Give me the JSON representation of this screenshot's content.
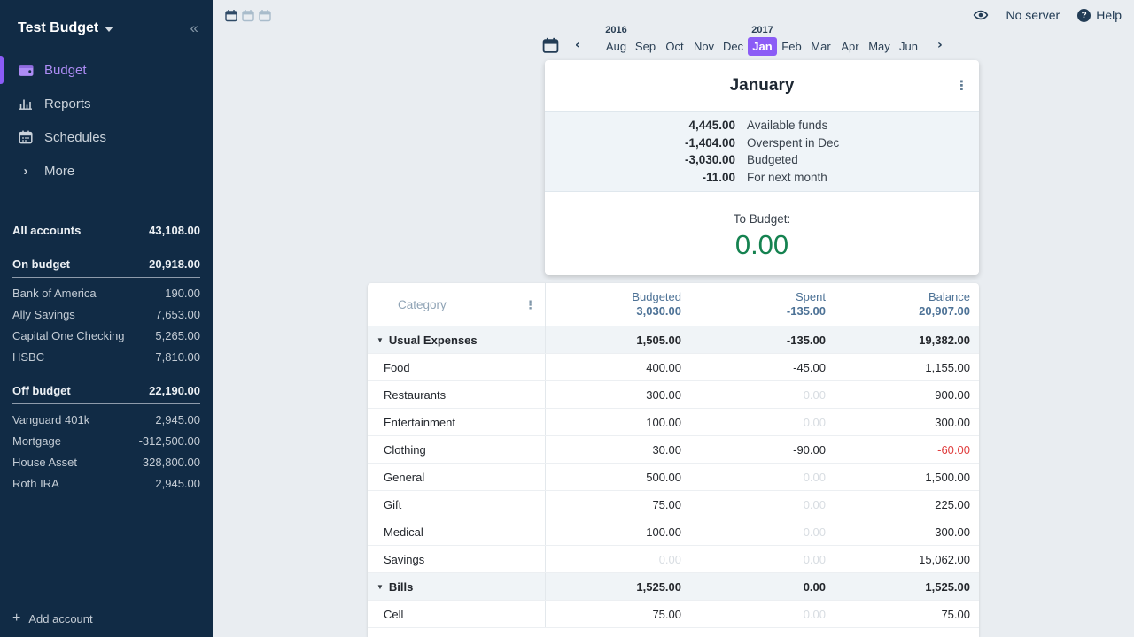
{
  "colors": {
    "sidebar_bg": "#112B45",
    "accent_purple": "#8B5CF6",
    "active_nav_purple": "#AD8CF5",
    "to_budget_green": "#158250",
    "negative_red": "#E03E3E",
    "header_steel_blue": "#4D7296",
    "topbar_navy": "#223C55"
  },
  "sidebar": {
    "budget_name": "Test Budget",
    "collapse_icon": "«",
    "nav": [
      {
        "label": "Budget",
        "icon": "wallet-icon",
        "active": true
      },
      {
        "label": "Reports",
        "icon": "bar-chart-icon",
        "active": false
      },
      {
        "label": "Schedules",
        "icon": "calendar-icon",
        "active": false
      },
      {
        "label": "More",
        "icon": "chevron-right-icon",
        "active": false
      }
    ],
    "all_accounts": {
      "label": "All accounts",
      "value": "43,108.00"
    },
    "groups": [
      {
        "label": "On budget",
        "value": "20,918.00",
        "accounts": [
          {
            "name": "Bank of America",
            "value": "190.00"
          },
          {
            "name": "Ally Savings",
            "value": "7,653.00"
          },
          {
            "name": "Capital One Checking",
            "value": "5,265.00"
          },
          {
            "name": "HSBC",
            "value": "7,810.00"
          }
        ]
      },
      {
        "label": "Off budget",
        "value": "22,190.00",
        "accounts": [
          {
            "name": "Vanguard 401k",
            "value": "2,945.00"
          },
          {
            "name": "Mortgage",
            "value": "-312,500.00"
          },
          {
            "name": "House Asset",
            "value": "328,800.00"
          },
          {
            "name": "Roth IRA",
            "value": "2,945.00"
          }
        ]
      }
    ],
    "add_account_label": "Add account"
  },
  "topbar": {
    "no_server_label": "No server",
    "help_label": "Help",
    "help_glyph": "?"
  },
  "month_picker": {
    "months": [
      "Aug",
      "Sep",
      "Oct",
      "Nov",
      "Dec",
      "Jan",
      "Feb",
      "Mar",
      "Apr",
      "May",
      "Jun"
    ],
    "selected_month": "Jan",
    "year_labels": [
      {
        "label": "2016",
        "month_index": 0
      },
      {
        "label": "2017",
        "month_index": 5
      }
    ],
    "prev_glyph": "‹",
    "next_glyph": "›"
  },
  "month_card": {
    "title": "January",
    "summary": [
      {
        "value": "4,445.00",
        "label": "Available funds"
      },
      {
        "value": "-1,404.00",
        "label": "Overspent in Dec"
      },
      {
        "value": "-3,030.00",
        "label": "Budgeted"
      },
      {
        "value": "-11.00",
        "label": "For next month"
      }
    ],
    "to_budget_label": "To Budget:",
    "to_budget_value": "0.00"
  },
  "table": {
    "category_header": "Category",
    "columns": [
      {
        "label": "Budgeted",
        "total": "3,030.00"
      },
      {
        "label": "Spent",
        "total": "-135.00"
      },
      {
        "label": "Balance",
        "total": "20,907.00"
      }
    ],
    "rows": [
      {
        "type": "group",
        "name": "Usual Expenses",
        "budgeted": "1,505.00",
        "spent": "-135.00",
        "balance": "19,382.00"
      },
      {
        "type": "row",
        "name": "Food",
        "budgeted": "400.00",
        "spent": "-45.00",
        "balance": "1,155.00"
      },
      {
        "type": "row",
        "name": "Restaurants",
        "budgeted": "300.00",
        "spent": "0.00",
        "spent_faded": true,
        "balance": "900.00"
      },
      {
        "type": "row",
        "name": "Entertainment",
        "budgeted": "100.00",
        "spent": "0.00",
        "spent_faded": true,
        "balance": "300.00"
      },
      {
        "type": "row",
        "name": "Clothing",
        "budgeted": "30.00",
        "spent": "-90.00",
        "balance": "-60.00",
        "balance_negative": true
      },
      {
        "type": "row",
        "name": "General",
        "budgeted": "500.00",
        "spent": "0.00",
        "spent_faded": true,
        "balance": "1,500.00"
      },
      {
        "type": "row",
        "name": "Gift",
        "budgeted": "75.00",
        "spent": "0.00",
        "spent_faded": true,
        "balance": "225.00"
      },
      {
        "type": "row",
        "name": "Medical",
        "budgeted": "100.00",
        "spent": "0.00",
        "spent_faded": true,
        "balance": "300.00"
      },
      {
        "type": "row",
        "name": "Savings",
        "budgeted": "0.00",
        "budgeted_faded": true,
        "spent": "0.00",
        "spent_faded": true,
        "balance": "15,062.00"
      },
      {
        "type": "group",
        "name": "Bills",
        "budgeted": "1,525.00",
        "spent": "0.00",
        "balance": "1,525.00"
      },
      {
        "type": "row",
        "name": "Cell",
        "budgeted": "75.00",
        "spent": "0.00",
        "spent_faded": true,
        "balance": "75.00"
      }
    ]
  }
}
